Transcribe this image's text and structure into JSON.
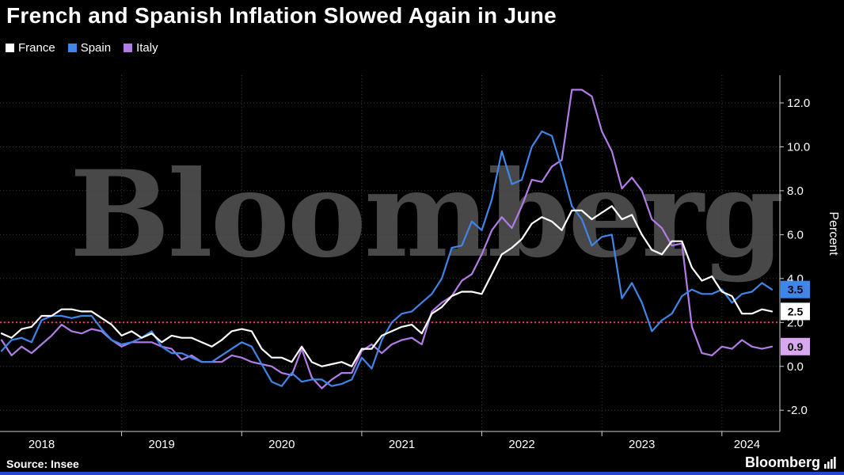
{
  "header": {
    "title": "French and Spanish Inflation Slowed Again in June"
  },
  "watermark": "Bloomberg",
  "footer": {
    "source": "Source: Insee",
    "brand": "Bloomberg"
  },
  "chart_data": {
    "type": "line",
    "title": "French and Spanish Inflation Slowed Again in June",
    "ylabel": "Percent",
    "x_frequency": "monthly",
    "x_start": "2018-01",
    "x_end": "2024-06",
    "x_tick_labels": [
      "2018",
      "2019",
      "2020",
      "2021",
      "2022",
      "2023",
      "2024"
    ],
    "yticks": [
      12,
      10,
      8,
      6,
      4,
      2,
      0,
      -2
    ],
    "ytick_labels": [
      "12.0",
      "10.0",
      "8.0",
      "6.0",
      "4.0",
      "2.0",
      "0.0",
      "-2.0"
    ],
    "ylim": [
      -3,
      13.3
    ],
    "grid": "dotted",
    "legend_position": "top-left",
    "target_line": {
      "value": 2.0,
      "color": "#ff3356",
      "style": "dotted"
    },
    "series": [
      {
        "name": "France",
        "color": "#ffffff",
        "end_label": "2.5",
        "label_bg": "#ffffff",
        "label_text_color": "#000000",
        "values": [
          1.5,
          1.3,
          1.7,
          1.8,
          2.3,
          2.3,
          2.6,
          2.6,
          2.5,
          2.5,
          2.2,
          1.9,
          1.4,
          1.6,
          1.3,
          1.5,
          1.1,
          1.4,
          1.3,
          1.3,
          1.1,
          0.9,
          1.2,
          1.6,
          1.7,
          1.6,
          0.8,
          0.4,
          0.4,
          0.2,
          0.9,
          0.2,
          0.0,
          0.1,
          0.2,
          0.0,
          0.8,
          0.8,
          1.4,
          1.6,
          1.8,
          1.9,
          1.5,
          2.4,
          2.7,
          3.2,
          3.4,
          3.4,
          3.3,
          4.2,
          5.1,
          5.4,
          5.8,
          6.5,
          6.8,
          6.6,
          6.2,
          7.1,
          7.1,
          6.7,
          7.0,
          7.3,
          6.7,
          6.9,
          6.0,
          5.3,
          5.1,
          5.7,
          5.7,
          4.5,
          3.9,
          4.1,
          3.4,
          3.2,
          2.4,
          2.4,
          2.6,
          2.5
        ]
      },
      {
        "name": "Spain",
        "color": "#3f86e8",
        "end_label": "3.5",
        "label_bg": "#3f86e8",
        "label_text_color": "#000000",
        "values": [
          0.7,
          1.2,
          1.3,
          1.1,
          2.1,
          2.3,
          2.3,
          2.2,
          2.3,
          2.3,
          1.7,
          1.2,
          1.0,
          1.1,
          1.3,
          1.6,
          0.9,
          0.6,
          0.6,
          0.4,
          0.2,
          0.2,
          0.5,
          0.8,
          1.1,
          0.9,
          0.1,
          -0.7,
          -0.9,
          -0.3,
          -0.7,
          -0.6,
          -0.6,
          -0.9,
          -0.8,
          -0.6,
          0.4,
          -0.1,
          1.2,
          2.0,
          2.4,
          2.5,
          2.9,
          3.3,
          4.0,
          5.4,
          5.5,
          6.6,
          6.2,
          7.6,
          9.8,
          8.3,
          8.5,
          10.0,
          10.7,
          10.5,
          9.0,
          7.3,
          6.7,
          5.5,
          5.9,
          6.0,
          3.1,
          3.8,
          2.9,
          1.6,
          2.1,
          2.4,
          3.2,
          3.5,
          3.3,
          3.3,
          3.5,
          2.9,
          3.3,
          3.4,
          3.8,
          3.5
        ]
      },
      {
        "name": "Italy",
        "color": "#b27ce6",
        "end_label": "0.9",
        "label_bg": "#d9a7f0",
        "label_text_color": "#000000",
        "values": [
          1.2,
          0.5,
          0.9,
          0.6,
          1.0,
          1.4,
          1.9,
          1.6,
          1.5,
          1.7,
          1.6,
          1.2,
          0.9,
          1.1,
          1.1,
          1.1,
          0.9,
          0.8,
          0.3,
          0.5,
          0.2,
          0.2,
          0.2,
          0.5,
          0.4,
          0.2,
          0.1,
          0.0,
          -0.3,
          -0.4,
          0.8,
          -0.5,
          -1.0,
          -0.6,
          -0.3,
          -0.3,
          0.7,
          1.0,
          0.6,
          1.0,
          1.2,
          1.3,
          1.0,
          2.5,
          2.9,
          3.2,
          3.9,
          4.2,
          5.1,
          6.2,
          6.8,
          6.3,
          7.3,
          8.5,
          8.4,
          9.1,
          9.4,
          12.6,
          12.6,
          12.3,
          10.7,
          9.8,
          8.1,
          8.6,
          8.0,
          6.7,
          6.3,
          5.5,
          5.6,
          1.8,
          0.6,
          0.5,
          0.9,
          0.8,
          1.2,
          0.9,
          0.8,
          0.9
        ]
      }
    ]
  }
}
